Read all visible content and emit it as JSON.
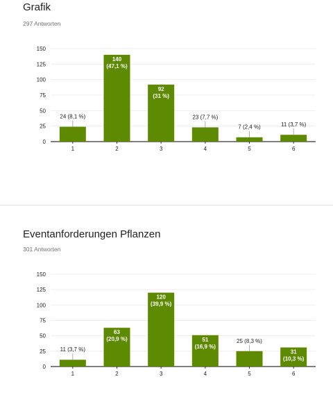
{
  "questions": [
    {
      "title": "Grafik",
      "responses": "297 Antworten"
    },
    {
      "title": "Eventanforderungen Pflanzen",
      "responses": "301 Antworten"
    }
  ],
  "colors": {
    "bar": "#5e8a02",
    "bar_label_inside": "#ffffff",
    "bar_label_outside": "#212121",
    "grid": "#eeeeee",
    "axis": "#333333",
    "tick_text": "#212121"
  },
  "chart_data": [
    {
      "type": "bar",
      "categories": [
        "1",
        "2",
        "3",
        "4",
        "5",
        "6"
      ],
      "values": [
        24,
        140,
        92,
        23,
        7,
        11
      ],
      "labels": [
        [
          "24 (8,1 %)"
        ],
        [
          "140",
          "(47,1 %)"
        ],
        [
          "92",
          "(31 %)"
        ],
        [
          "23 (7,7 %)"
        ],
        [
          "7 (2,4 %)"
        ],
        [
          "11 (3,7 %)"
        ]
      ],
      "label_inside": [
        false,
        true,
        true,
        false,
        false,
        false
      ],
      "ylim": [
        0,
        150
      ],
      "yticks": [
        0,
        25,
        50,
        75,
        100,
        125,
        150
      ],
      "grid": true,
      "legend": "none"
    },
    {
      "type": "bar",
      "categories": [
        "1",
        "2",
        "3",
        "4",
        "5",
        "6"
      ],
      "values": [
        11,
        63,
        120,
        51,
        25,
        31
      ],
      "labels": [
        [
          "11 (3,7 %)"
        ],
        [
          "63",
          "(20,9 %)"
        ],
        [
          "120",
          "(39,9 %)"
        ],
        [
          "51",
          "(16,9 %)"
        ],
        [
          "25 (8,3 %)"
        ],
        [
          "31",
          "(10,3 %)"
        ]
      ],
      "label_inside": [
        false,
        true,
        true,
        true,
        false,
        true
      ],
      "ylim": [
        0,
        150
      ],
      "yticks": [
        0,
        25,
        50,
        75,
        100,
        125,
        150
      ],
      "grid": true,
      "legend": "none"
    }
  ]
}
